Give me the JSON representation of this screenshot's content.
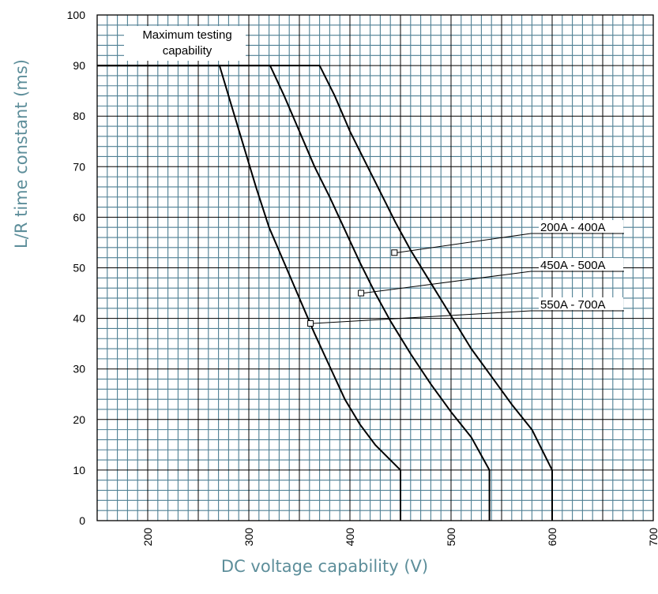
{
  "chart_data": {
    "type": "line",
    "title": "",
    "xlabel": "DC voltage capability (V)",
    "ylabel": "L/R time constant (ms)",
    "xlim": [
      150,
      700
    ],
    "ylim": [
      0,
      100
    ],
    "x_ticks": [
      "200",
      "300",
      "400",
      "500",
      "600",
      "700"
    ],
    "y_ticks": [
      "0",
      "10",
      "20",
      "30",
      "40",
      "50",
      "60",
      "70",
      "80",
      "90",
      "100"
    ],
    "grid": true,
    "annotation": "Maximum testing capability",
    "annotation_lines": [
      "Maximum testing",
      "capability"
    ],
    "series": [
      {
        "name": "200A - 400A",
        "x": [
          150,
          370,
          385,
          400,
          415,
          430,
          445,
          460,
          480,
          500,
          520,
          540,
          560,
          580,
          600,
          600
        ],
        "y": [
          90,
          90,
          84,
          77,
          71,
          65,
          59,
          53.5,
          47,
          40.5,
          34,
          28.5,
          23,
          18,
          10,
          0
        ],
        "marker_x": 444,
        "marker_y": 53
      },
      {
        "name": "450A - 500A",
        "x": [
          150,
          321,
          335,
          350,
          365,
          380,
          395,
          410,
          425,
          440,
          460,
          480,
          500,
          520,
          538,
          538
        ],
        "y": [
          90,
          90,
          84,
          77,
          70,
          64,
          57.5,
          51,
          45,
          39.5,
          33,
          27,
          21.5,
          16.5,
          10,
          0
        ],
        "marker_x": 411,
        "marker_y": 45
      },
      {
        "name": "550A - 700A",
        "x": [
          150,
          271,
          283,
          295,
          307,
          320,
          335,
          350,
          365,
          380,
          395,
          410,
          425,
          450,
          450
        ],
        "y": [
          90,
          90,
          82,
          74,
          66,
          58,
          51,
          44,
          37,
          30.5,
          24,
          19,
          15,
          10,
          0
        ],
        "marker_x": 361,
        "marker_y": 39
      }
    ],
    "color": "#000000",
    "axis_title_color": "#5d8e9a",
    "grid_minor_color": "#4e7f93"
  }
}
